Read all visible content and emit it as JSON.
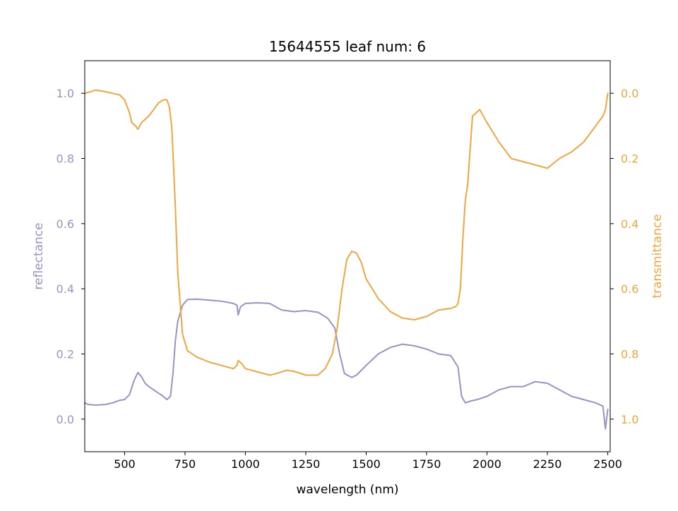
{
  "chart_data": {
    "type": "line",
    "title": "15644555 leaf num: 6",
    "xlabel": "wavelength (nm)",
    "xlim": [
      335,
      2510
    ],
    "x_ticks": [
      500,
      750,
      1000,
      1250,
      1500,
      1750,
      2000,
      2250,
      2500
    ],
    "x_tick_labels": [
      "500",
      "750",
      "1000",
      "1250",
      "1500",
      "1750",
      "2000",
      "2250",
      "2500"
    ],
    "grid": false,
    "legend": "none",
    "axes": {
      "left": {
        "label": "reflectance",
        "color": "#9892c6",
        "ylim": [
          -0.1,
          1.1
        ],
        "ticks": [
          0.0,
          0.2,
          0.4,
          0.6,
          0.8,
          1.0
        ],
        "tick_labels": [
          "0.0",
          "0.2",
          "0.4",
          "0.6",
          "0.8",
          "1.0"
        ],
        "inverted": false
      },
      "right": {
        "label": "transmittance",
        "color": "#f0a540",
        "ylim": [
          1.1,
          -0.1
        ],
        "ticks": [
          0.0,
          0.2,
          0.4,
          0.6,
          0.8,
          1.0
        ],
        "tick_labels": [
          "0.0",
          "0.2",
          "0.4",
          "0.6",
          "0.8",
          "1.0"
        ],
        "inverted": true
      }
    },
    "series": [
      {
        "axis": "left",
        "color": "#9892c6",
        "x": [
          335,
          350,
          380,
          420,
          450,
          480,
          500,
          520,
          540,
          555,
          570,
          585,
          600,
          620,
          640,
          660,
          675,
          690,
          700,
          710,
          720,
          740,
          760,
          800,
          850,
          900,
          950,
          965,
          970,
          980,
          1000,
          1050,
          1100,
          1150,
          1200,
          1250,
          1300,
          1340,
          1370,
          1390,
          1410,
          1440,
          1460,
          1500,
          1550,
          1600,
          1650,
          1700,
          1750,
          1800,
          1850,
          1880,
          1895,
          1910,
          1930,
          1960,
          2000,
          2050,
          2100,
          2150,
          2200,
          2250,
          2300,
          2350,
          2400,
          2450,
          2480,
          2490,
          2500
        ],
        "y": [
          0.05,
          0.045,
          0.043,
          0.045,
          0.05,
          0.058,
          0.06,
          0.075,
          0.12,
          0.143,
          0.13,
          0.11,
          0.1,
          0.09,
          0.08,
          0.07,
          0.06,
          0.07,
          0.14,
          0.24,
          0.3,
          0.35,
          0.367,
          0.368,
          0.365,
          0.362,
          0.355,
          0.35,
          0.32,
          0.345,
          0.355,
          0.357,
          0.355,
          0.335,
          0.33,
          0.333,
          0.328,
          0.31,
          0.28,
          0.2,
          0.14,
          0.128,
          0.135,
          0.165,
          0.2,
          0.22,
          0.23,
          0.225,
          0.215,
          0.2,
          0.195,
          0.16,
          0.07,
          0.05,
          0.055,
          0.06,
          0.07,
          0.09,
          0.1,
          0.1,
          0.115,
          0.11,
          0.09,
          0.07,
          0.06,
          0.05,
          0.04,
          -0.03,
          0.03
        ]
      },
      {
        "axis": "right",
        "color": "#f0a540",
        "x": [
          335,
          360,
          380,
          420,
          450,
          480,
          500,
          520,
          530,
          545,
          555,
          570,
          585,
          600,
          620,
          640,
          660,
          675,
          685,
          695,
          700,
          710,
          720,
          740,
          760,
          800,
          850,
          900,
          950,
          965,
          970,
          985,
          1000,
          1050,
          1100,
          1130,
          1170,
          1200,
          1250,
          1300,
          1330,
          1360,
          1380,
          1400,
          1420,
          1440,
          1460,
          1480,
          1500,
          1550,
          1600,
          1650,
          1700,
          1750,
          1800,
          1850,
          1870,
          1880,
          1890,
          1900,
          1910,
          1920,
          1940,
          1970,
          2000,
          2050,
          2100,
          2150,
          2200,
          2250,
          2300,
          2350,
          2400,
          2450,
          2480,
          2490,
          2500
        ],
        "y": [
          0.0,
          -0.005,
          -0.01,
          -0.005,
          0.0,
          0.005,
          0.02,
          0.06,
          0.09,
          0.1,
          0.11,
          0.09,
          0.08,
          0.07,
          0.05,
          0.03,
          0.02,
          0.02,
          0.04,
          0.1,
          0.18,
          0.35,
          0.55,
          0.74,
          0.79,
          0.81,
          0.825,
          0.835,
          0.845,
          0.835,
          0.82,
          0.83,
          0.845,
          0.855,
          0.865,
          0.86,
          0.85,
          0.853,
          0.865,
          0.865,
          0.845,
          0.8,
          0.72,
          0.6,
          0.51,
          0.485,
          0.49,
          0.52,
          0.57,
          0.63,
          0.67,
          0.69,
          0.695,
          0.685,
          0.665,
          0.66,
          0.655,
          0.645,
          0.6,
          0.45,
          0.33,
          0.28,
          0.07,
          0.05,
          0.09,
          0.15,
          0.2,
          0.21,
          0.22,
          0.23,
          0.2,
          0.18,
          0.15,
          0.1,
          0.07,
          0.05,
          0.0
        ]
      }
    ]
  }
}
